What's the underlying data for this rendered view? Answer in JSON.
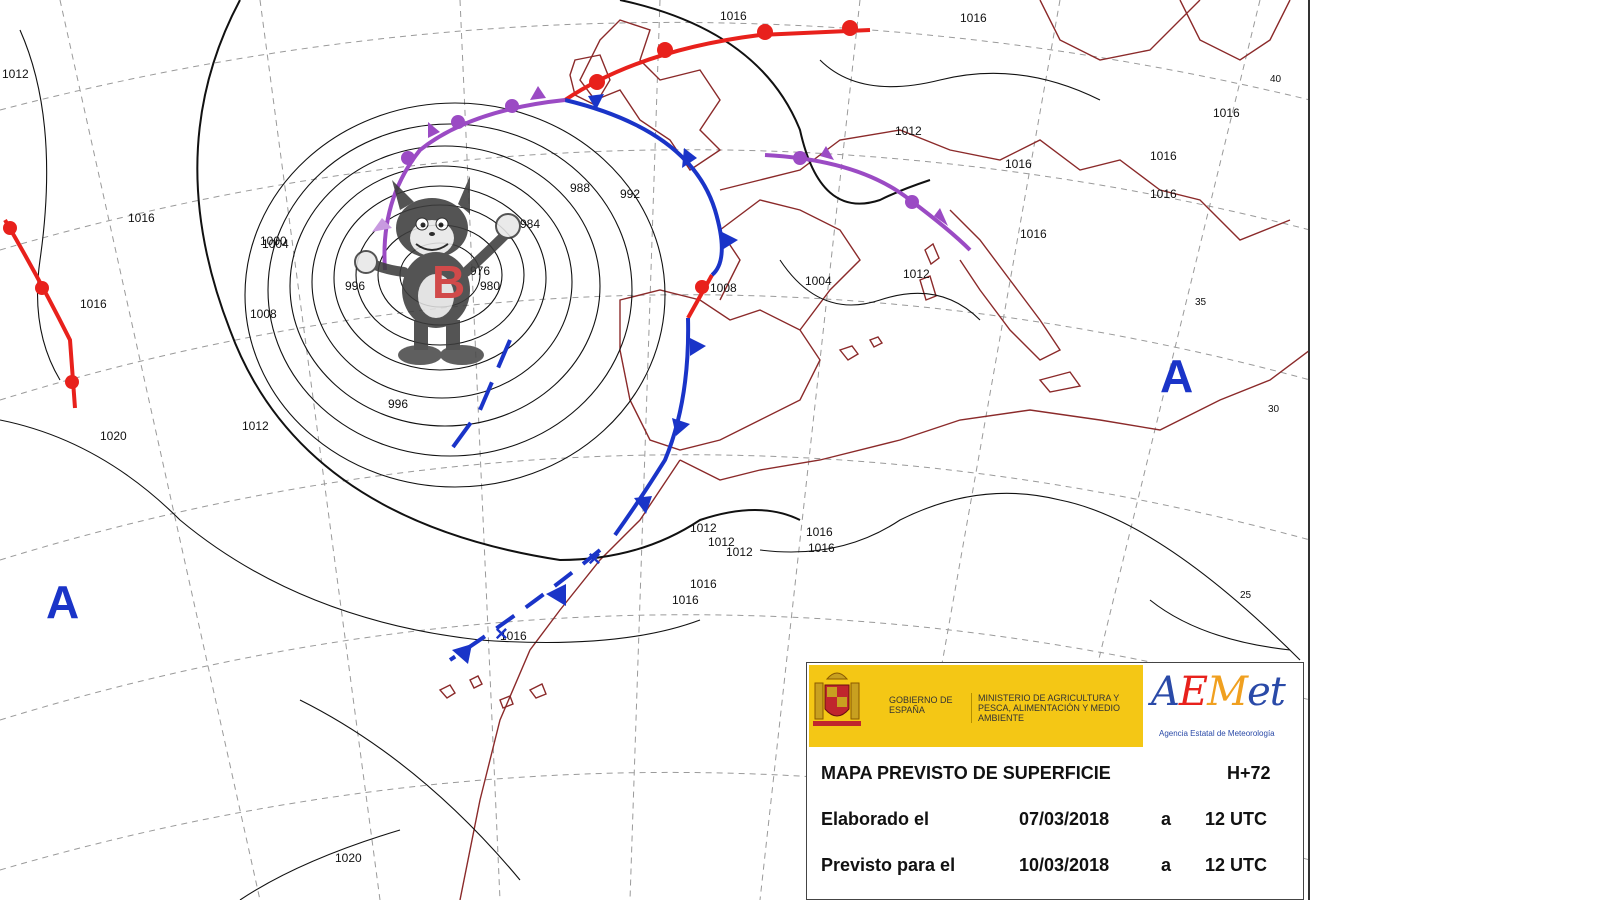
{
  "map": {
    "isobar_labels": [
      "1012",
      "1016",
      "1016",
      "1016",
      "1012",
      "1016",
      "1020",
      "1012",
      "1008",
      "1004",
      "1000",
      "996",
      "992",
      "988",
      "984",
      "980",
      "976",
      "996",
      "1004",
      "1008",
      "1012",
      "1016",
      "1016",
      "1012",
      "1012",
      "1012",
      "1016",
      "1016",
      "1016",
      "1016",
      "1020",
      "1020",
      "1016",
      "1016",
      "1016",
      "1016"
    ],
    "grid_labels": [
      "35",
      "30",
      "25",
      "40"
    ],
    "pressure_centers": {
      "high_west": "A",
      "high_east": "A",
      "low_center": "B"
    },
    "colors": {
      "warm_front": "#e8211c",
      "cold_front": "#1a34c8",
      "occluded_front": "#9b4bc4",
      "coastline": "#8b2a2a",
      "isobar": "#111111",
      "high_label": "#1a34c8"
    }
  },
  "legend": {
    "government_label": "GOBIERNO DE ESPAÑA",
    "ministry_label": "MINISTERIO DE AGRICULTURA Y PESCA, ALIMENTACIÓN Y MEDIO AMBIENTE",
    "aemet_name": "AEMet",
    "aemet_subtitle": "Agencia Estatal de Meteorología",
    "title": "MAPA PREVISTO DE SUPERFICIE",
    "lead_time": "H+72",
    "made_label": "Elaborado el",
    "made_date": "07/03/2018",
    "made_a": "a",
    "made_time": "12 UTC",
    "valid_label": "Previsto para el",
    "valid_date": "10/03/2018",
    "valid_a": "a",
    "valid_time": "12 UTC"
  }
}
